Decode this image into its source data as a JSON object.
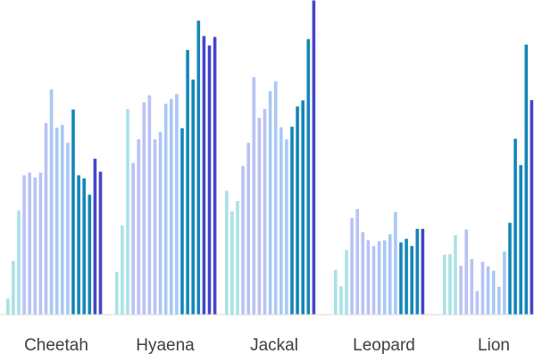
{
  "chart_data": {
    "type": "bar",
    "title": "",
    "xlabel": "",
    "ylabel": "",
    "grid": false,
    "legend": "none",
    "ylim": [
      0,
      100
    ],
    "categories": [
      "Cheetah",
      "Hyaena",
      "Jackal",
      "Leopard",
      "Lion"
    ],
    "colors": [
      "#a8e2e4",
      "#a8e2e4",
      "#a8e2e4",
      "#b9c2f5",
      "#b9c2f5",
      "#b9c2f5",
      "#b9c2f5",
      "#b9c2f5",
      "#a8c8f5",
      "#a8c8f5",
      "#a8c8f5",
      "#a8c8f5",
      "#1486b8",
      "#1486b8",
      "#1486b8",
      "#1486b8",
      "#4646c9",
      "#4646c9",
      "#4646c9",
      "#4646c9",
      "#0a1f5c",
      "#0a1f5c"
    ],
    "values": [
      [
        5.3,
        17.8,
        34.5,
        46.1,
        47.0,
        45.4,
        47.0,
        63.4,
        74.6,
        61.9,
        62.8,
        56.9,
        67.9,
        46.1,
        45.1,
        39.7,
        51.6,
        47.3
      ],
      [
        14.2,
        29.5,
        68.1,
        50.2,
        58.0,
        70.3,
        72.6,
        58.0,
        60.5,
        69.8,
        71.4,
        73.0,
        61.7,
        87.6,
        77.8,
        97.3,
        92.2,
        89.1,
        91.9
      ],
      [
        41.0,
        34.2,
        37.6,
        49.2,
        56.9,
        78.6,
        65.1,
        68.1,
        73.9,
        77.2,
        62.0,
        58.0,
        62.2,
        68.9,
        70.9,
        91.2,
        104.0
      ],
      [
        14.8,
        9.4,
        21.4,
        32.0,
        35.0,
        27.3,
        24.6,
        22.7,
        24.3,
        24.6,
        26.6,
        34.0,
        23.9,
        25.1,
        22.7,
        28.4,
        28.4
      ],
      [
        19.8,
        20.0,
        26.3,
        16.2,
        28.2,
        18.4,
        7.8,
        17.5,
        16.0,
        14.6,
        9.2,
        20.9,
        30.4,
        58.2,
        49.5,
        89.4,
        71.0,
        58.3
      ]
    ]
  }
}
